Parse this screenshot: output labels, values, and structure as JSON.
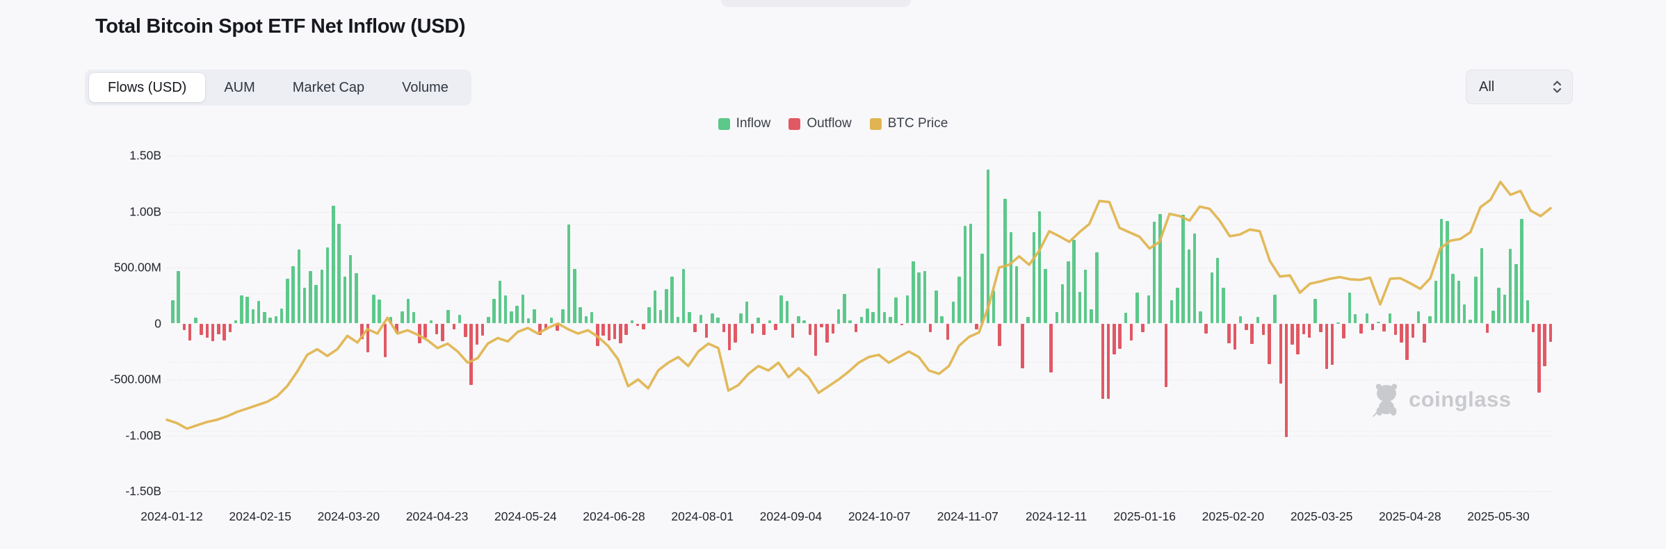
{
  "page": {
    "background": "#f8f8fa"
  },
  "header": {
    "title": "Total Bitcoin Spot ETF Net Inflow (USD)"
  },
  "tabs": {
    "items": [
      {
        "label": "Flows (USD)",
        "active": true
      },
      {
        "label": "AUM",
        "active": false
      },
      {
        "label": "Market Cap",
        "active": false
      },
      {
        "label": "Volume",
        "active": false
      }
    ]
  },
  "range_select": {
    "value": "All"
  },
  "legend": [
    {
      "label": "Inflow",
      "color": "#5cc88a"
    },
    {
      "label": "Outflow",
      "color": "#e15864"
    },
    {
      "label": "BTC Price",
      "color": "#e0b551"
    }
  ],
  "watermark": {
    "text": "coinglass",
    "color": "#c7c8cb"
  },
  "chart_data": {
    "type": "bar",
    "title": "Total Bitcoin Spot ETF Net Inflow (USD)",
    "grid": true,
    "legend_position": "top-center",
    "y_axis": {
      "unit": "USD",
      "min_millions": -1500,
      "max_millions": 1500,
      "ticks": [
        {
          "label": "1.50B",
          "value": 1500
        },
        {
          "label": "1.00B",
          "value": 1000
        },
        {
          "label": "500.00M",
          "value": 500
        },
        {
          "label": "0",
          "value": 0
        },
        {
          "label": "-500.00M",
          "value": -500
        },
        {
          "label": "-1.00B",
          "value": -1000
        },
        {
          "label": "-1.50B",
          "value": -1500
        }
      ]
    },
    "secondary_gridlines_millions": [
      885,
      270,
      -345,
      -960
    ],
    "x_axis": {
      "ticks": [
        "2024-01-12",
        "2024-02-15",
        "2024-03-20",
        "2024-04-23",
        "2024-05-24",
        "2024-06-28",
        "2024-08-01",
        "2024-09-04",
        "2024-10-07",
        "2024-11-07",
        "2024-12-11",
        "2025-01-16",
        "2025-02-20",
        "2025-03-25",
        "2025-04-28",
        "2025-05-30"
      ],
      "range": [
        "2024-01-12",
        "2025-05-30"
      ]
    },
    "series": [
      {
        "name": "Inflow/Outflow",
        "type": "bar",
        "unit": "millions USD",
        "positive_color": "#5cc88a",
        "negative_color": "#e15864",
        "values_millions": [
          210,
          470,
          -60,
          -150,
          50,
          -100,
          -125,
          -158,
          -95,
          -155,
          -75,
          30,
          250,
          240,
          125,
          200,
          105,
          50,
          65,
          135,
          400,
          510,
          660,
          320,
          470,
          345,
          480,
          680,
          1050,
          890,
          420,
          610,
          450,
          -140,
          -260,
          260,
          215,
          -300,
          60,
          -85,
          110,
          220,
          100,
          -180,
          -125,
          30,
          -95,
          -160,
          120,
          -55,
          75,
          -120,
          -550,
          -190,
          -110,
          60,
          220,
          380,
          250,
          110,
          160,
          255,
          45,
          130,
          -105,
          -60,
          50,
          -65,
          130,
          887,
          488,
          145,
          65,
          100,
          -200,
          -106,
          -152,
          -140,
          -175,
          -105,
          30,
          -20,
          -54,
          143,
          295,
          120,
          310,
          422,
          60,
          485,
          105,
          -78,
          75,
          -127,
          90,
          50,
          -80,
          -237,
          -168,
          90,
          194,
          -90,
          50,
          -105,
          30,
          -60,
          252,
          202,
          -127,
          65,
          30,
          -100,
          -288,
          -35,
          -170,
          -90,
          125,
          263,
          28,
          -80,
          60,
          135,
          105,
          494,
          105,
          60,
          235,
          -18,
          253,
          556,
          458,
          470,
          -80,
          294,
          65,
          -145,
          195,
          420,
          870,
          893,
          -54,
          622,
          1376,
          293,
          -200,
          1114,
          817,
          510,
          -400,
          60,
          816,
          1005,
          490,
          -435,
          103,
          354,
          557,
          748,
          280,
          479,
          130,
          636,
          -671,
          -672,
          -277,
          -226,
          95,
          -150,
          275,
          -80,
          250,
          908,
          978,
          -568,
          210,
          320,
          969,
          660,
          802,
          110,
          -90,
          456,
          588,
          320,
          -180,
          -234,
          65,
          -56,
          -186,
          60,
          -100,
          -364,
          255,
          -539,
          -1014,
          -188,
          -276,
          -94,
          -130,
          220,
          -80,
          -409,
          -370,
          5,
          -135,
          275,
          83,
          -93,
          89,
          -60,
          13,
          -70,
          90,
          -100,
          -170,
          -326,
          -128,
          108,
          -170,
          65,
          381,
          936,
          917,
          442,
          380,
          173,
          36,
          422,
          675,
          -85,
          118,
          320,
          260,
          667,
          530,
          935,
          211,
          -80,
          -617,
          -380,
          -165
        ]
      },
      {
        "name": "BTC Price",
        "type": "line",
        "color": "#e0b551",
        "price_axis_hidden": true,
        "values_on_flow_axis_millions": [
          -860,
          -890,
          -940,
          -910,
          -880,
          -860,
          -830,
          -790,
          -760,
          -730,
          -700,
          -650,
          -560,
          -430,
          -280,
          -230,
          -290,
          -230,
          -110,
          -170,
          -50,
          -90,
          50,
          -90,
          -60,
          -100,
          -150,
          -220,
          -180,
          -250,
          -350,
          -310,
          -180,
          -130,
          -160,
          -75,
          -40,
          -90,
          -40,
          0,
          -50,
          -90,
          -60,
          -120,
          -200,
          -320,
          -560,
          -500,
          -580,
          -420,
          -350,
          -300,
          -380,
          -250,
          -180,
          -220,
          -600,
          -550,
          -450,
          -380,
          -420,
          -350,
          -480,
          -400,
          -480,
          -620,
          -560,
          -500,
          -430,
          -350,
          -300,
          -280,
          -350,
          -300,
          -250,
          -300,
          -420,
          -450,
          -380,
          -200,
          -120,
          -80,
          170,
          500,
          525,
          600,
          525,
          650,
          825,
          780,
          730,
          815,
          890,
          1095,
          1085,
          855,
          815,
          775,
          670,
          730,
          980,
          960,
          920,
          1045,
          1025,
          920,
          780,
          795,
          840,
          825,
          560,
          420,
          430,
          275,
          355,
          375,
          400,
          415,
          395,
          390,
          410,
          170,
          400,
          405,
          360,
          310,
          405,
          670,
          740,
          755,
          815,
          1040,
          1105,
          1265,
          1150,
          1185,
          1010,
          960,
          1030
        ]
      }
    ]
  }
}
